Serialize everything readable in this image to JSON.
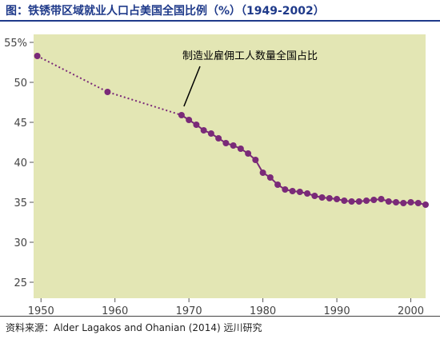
{
  "header": {
    "title": "图：铁锈带区域就业人口占美国全国比例（%）（1949-2002）"
  },
  "footer": {
    "source": "资料来源：Alder Lagakos and Ohanian (2014)  远川研究"
  },
  "colors": {
    "plot_background": "#e3e6b4",
    "marker": "#7a2a78",
    "title": "#1f3a8a"
  },
  "chart_data": {
    "type": "line",
    "title": "",
    "xlabel": "",
    "ylabel": "",
    "xlim": [
      1949,
      2002
    ],
    "ylim": [
      23,
      56
    ],
    "grid": false,
    "x_ticks": [
      1950,
      1960,
      1970,
      1980,
      1990,
      2000
    ],
    "x_tick_labels": [
      "1950",
      "1960",
      "1970",
      "1980",
      "1990",
      "2000"
    ],
    "y_ticks": [
      25,
      30,
      35,
      40,
      45,
      50,
      55
    ],
    "y_tick_labels": [
      "25",
      "30",
      "35",
      "40",
      "45",
      "50",
      "55%"
    ],
    "annotations": [
      {
        "text": "制造业雇佣工人数量全国占比",
        "points_to": [
          1969,
          46.0
        ]
      }
    ],
    "series": [
      {
        "points": [
          [
            1949.5,
            53.3
          ],
          [
            1959,
            48.8
          ],
          [
            1969,
            45.9
          ],
          [
            1970,
            45.3
          ],
          [
            1971,
            44.7
          ],
          [
            1972,
            44.0
          ],
          [
            1973,
            43.6
          ],
          [
            1974,
            43.0
          ],
          [
            1975,
            42.4
          ],
          [
            1976,
            42.1
          ],
          [
            1977,
            41.7
          ],
          [
            1978,
            41.1
          ],
          [
            1979,
            40.3
          ],
          [
            1980,
            38.7
          ],
          [
            1981,
            38.1
          ],
          [
            1982,
            37.2
          ],
          [
            1983,
            36.6
          ],
          [
            1984,
            36.4
          ],
          [
            1985,
            36.3
          ],
          [
            1986,
            36.1
          ],
          [
            1987,
            35.8
          ],
          [
            1988,
            35.6
          ],
          [
            1989,
            35.5
          ],
          [
            1990,
            35.4
          ],
          [
            1991,
            35.2
          ],
          [
            1992,
            35.1
          ],
          [
            1993,
            35.1
          ],
          [
            1994,
            35.2
          ],
          [
            1995,
            35.3
          ],
          [
            1996,
            35.4
          ],
          [
            1997,
            35.1
          ],
          [
            1998,
            35.0
          ],
          [
            1999,
            34.9
          ],
          [
            2000,
            35.0
          ],
          [
            2001,
            34.9
          ],
          [
            2002,
            34.7
          ]
        ],
        "dotted_until_index": 2
      }
    ]
  }
}
